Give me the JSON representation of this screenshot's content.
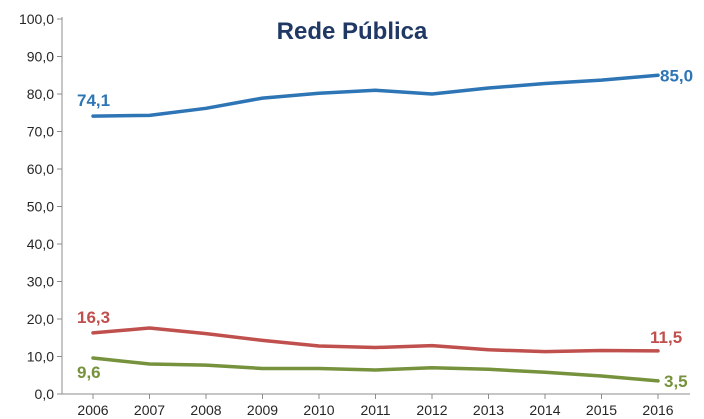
{
  "chart_data": {
    "type": "line",
    "title": "Rede Pública",
    "xlabel": "",
    "ylabel": "",
    "x": [
      "2006",
      "2007",
      "2008",
      "2009",
      "2010",
      "2011",
      "2012",
      "2013",
      "2014",
      "2015",
      "2016"
    ],
    "ylim": [
      0,
      100
    ],
    "yticks": [
      "0,0",
      "10,0",
      "20,0",
      "30,0",
      "40,0",
      "50,0",
      "60,0",
      "70,0",
      "80,0",
      "90,0",
      "100,0"
    ],
    "grid": false,
    "legend": "none",
    "series": [
      {
        "color": "#2e75b6",
        "values": [
          74.1,
          74.3,
          76.2,
          78.9,
          80.2,
          81.0,
          80.0,
          81.6,
          82.8,
          83.7,
          85.0
        ],
        "labels": [
          {
            "index": 0,
            "text": "74,1"
          },
          {
            "index": 10,
            "text": "85,0"
          }
        ]
      },
      {
        "color": "#c0504d",
        "values": [
          16.3,
          17.6,
          16.1,
          14.3,
          12.8,
          12.4,
          12.9,
          11.8,
          11.3,
          11.6,
          11.5
        ],
        "labels": [
          {
            "index": 0,
            "text": "16,3"
          },
          {
            "index": 10,
            "text": "11,5"
          }
        ]
      },
      {
        "color": "#76923c",
        "values": [
          9.6,
          8.0,
          7.7,
          6.8,
          6.8,
          6.4,
          7.0,
          6.6,
          5.8,
          4.8,
          3.5
        ],
        "labels": [
          {
            "index": 0,
            "text": "9,6"
          },
          {
            "index": 10,
            "text": "3,5"
          }
        ]
      }
    ]
  }
}
